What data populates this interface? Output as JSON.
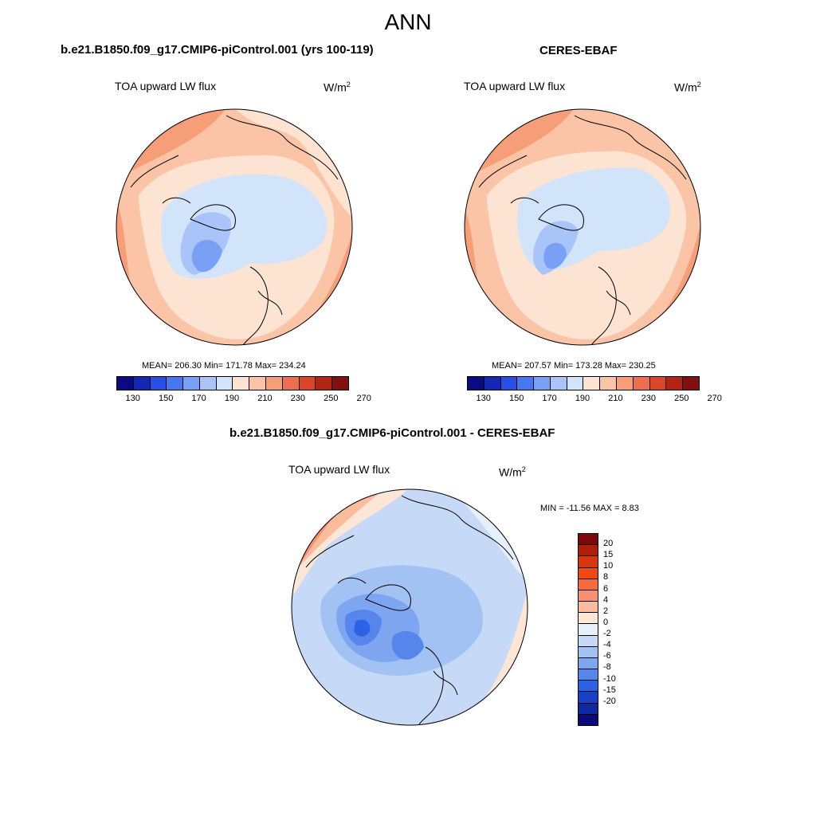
{
  "page": {
    "title": "ANN"
  },
  "panels": {
    "model": {
      "case_title": "b.e21.B1850.f09_g17.CMIP6-piControl.001 (yrs 100-119)",
      "variable": "TOA upward LW flux",
      "units_base": "W/m",
      "units_exp": "2",
      "stats_text": "MEAN= 206.30  Min= 171.78  Max= 234.24",
      "colorbar_ticks": [
        "130",
        "150",
        "170",
        "190",
        "210",
        "230",
        "250",
        "270"
      ]
    },
    "obs": {
      "case_title": "CERES-EBAF",
      "variable": "TOA upward LW flux",
      "units_base": "W/m",
      "units_exp": "2",
      "stats_text": "MEAN= 207.57  Min= 173.28  Max= 230.25",
      "colorbar_ticks": [
        "130",
        "150",
        "170",
        "190",
        "210",
        "230",
        "250",
        "270"
      ]
    },
    "diff": {
      "case_title": "b.e21.B1850.f09_g17.CMIP6-piControl.001 - CERES-EBAF",
      "variable": "TOA upward LW flux",
      "units_base": "W/m",
      "units_exp": "2",
      "stats_text": "MIN = -11.56 MAX =   8.83",
      "colorbar_ticks": [
        "20",
        "15",
        "10",
        "8",
        "6",
        "4",
        "2",
        "0",
        "-2",
        "-4",
        "-6",
        "-8",
        "-10",
        "-15",
        "-20"
      ]
    }
  },
  "colors": {
    "abs_scale": [
      "#0a0a82",
      "#1428b4",
      "#2850e6",
      "#4678f0",
      "#7aa0f5",
      "#a8c4f8",
      "#d2e4fa",
      "#fde3d2",
      "#fbc4a6",
      "#f59e78",
      "#ec7050",
      "#dc4628",
      "#b42414",
      "#821010"
    ],
    "diff_scale": [
      "#7a0a0a",
      "#b01e0a",
      "#d8360e",
      "#f04a14",
      "#f76a3c",
      "#fa9070",
      "#fbbc9e",
      "#fde6d6",
      "#e6f0fb",
      "#c6daf7",
      "#a2c2f4",
      "#7ea6f0",
      "#5686ec",
      "#2c62e6",
      "#1a40c8",
      "#0e2aa0",
      "#0a0a7a"
    ]
  }
}
